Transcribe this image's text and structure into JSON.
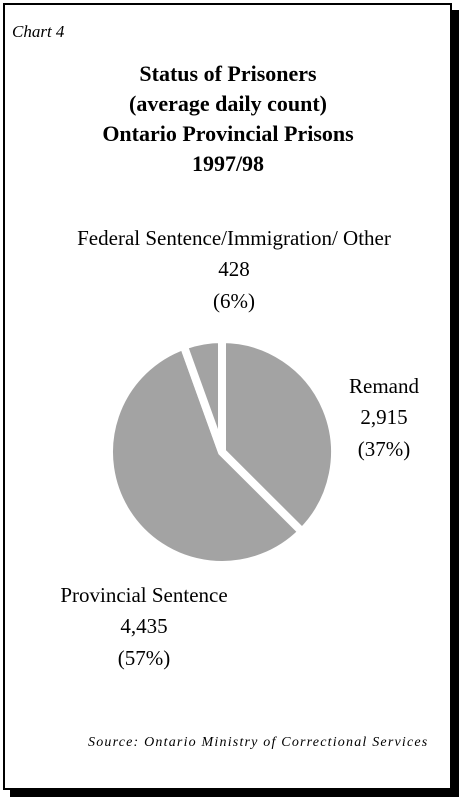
{
  "chart_data": {
    "type": "pie",
    "label": "Chart 4",
    "title": [
      "Status of Prisoners",
      "(average daily count)",
      "Ontario Provincial Prisons",
      "1997/98"
    ],
    "categories": [
      "Remand",
      "Provincial Sentence",
      "Federal Sentence/Immigration/ Other"
    ],
    "values": [
      2915,
      4435,
      428
    ],
    "value_labels": [
      "2,915",
      "4,435",
      "428"
    ],
    "percents": [
      37,
      57,
      6
    ],
    "percent_labels": [
      "(37%)",
      "(57%)",
      "(6%)"
    ],
    "color": "#a3a3a3",
    "source": "Source: Ontario Ministry of Correctional Services"
  }
}
